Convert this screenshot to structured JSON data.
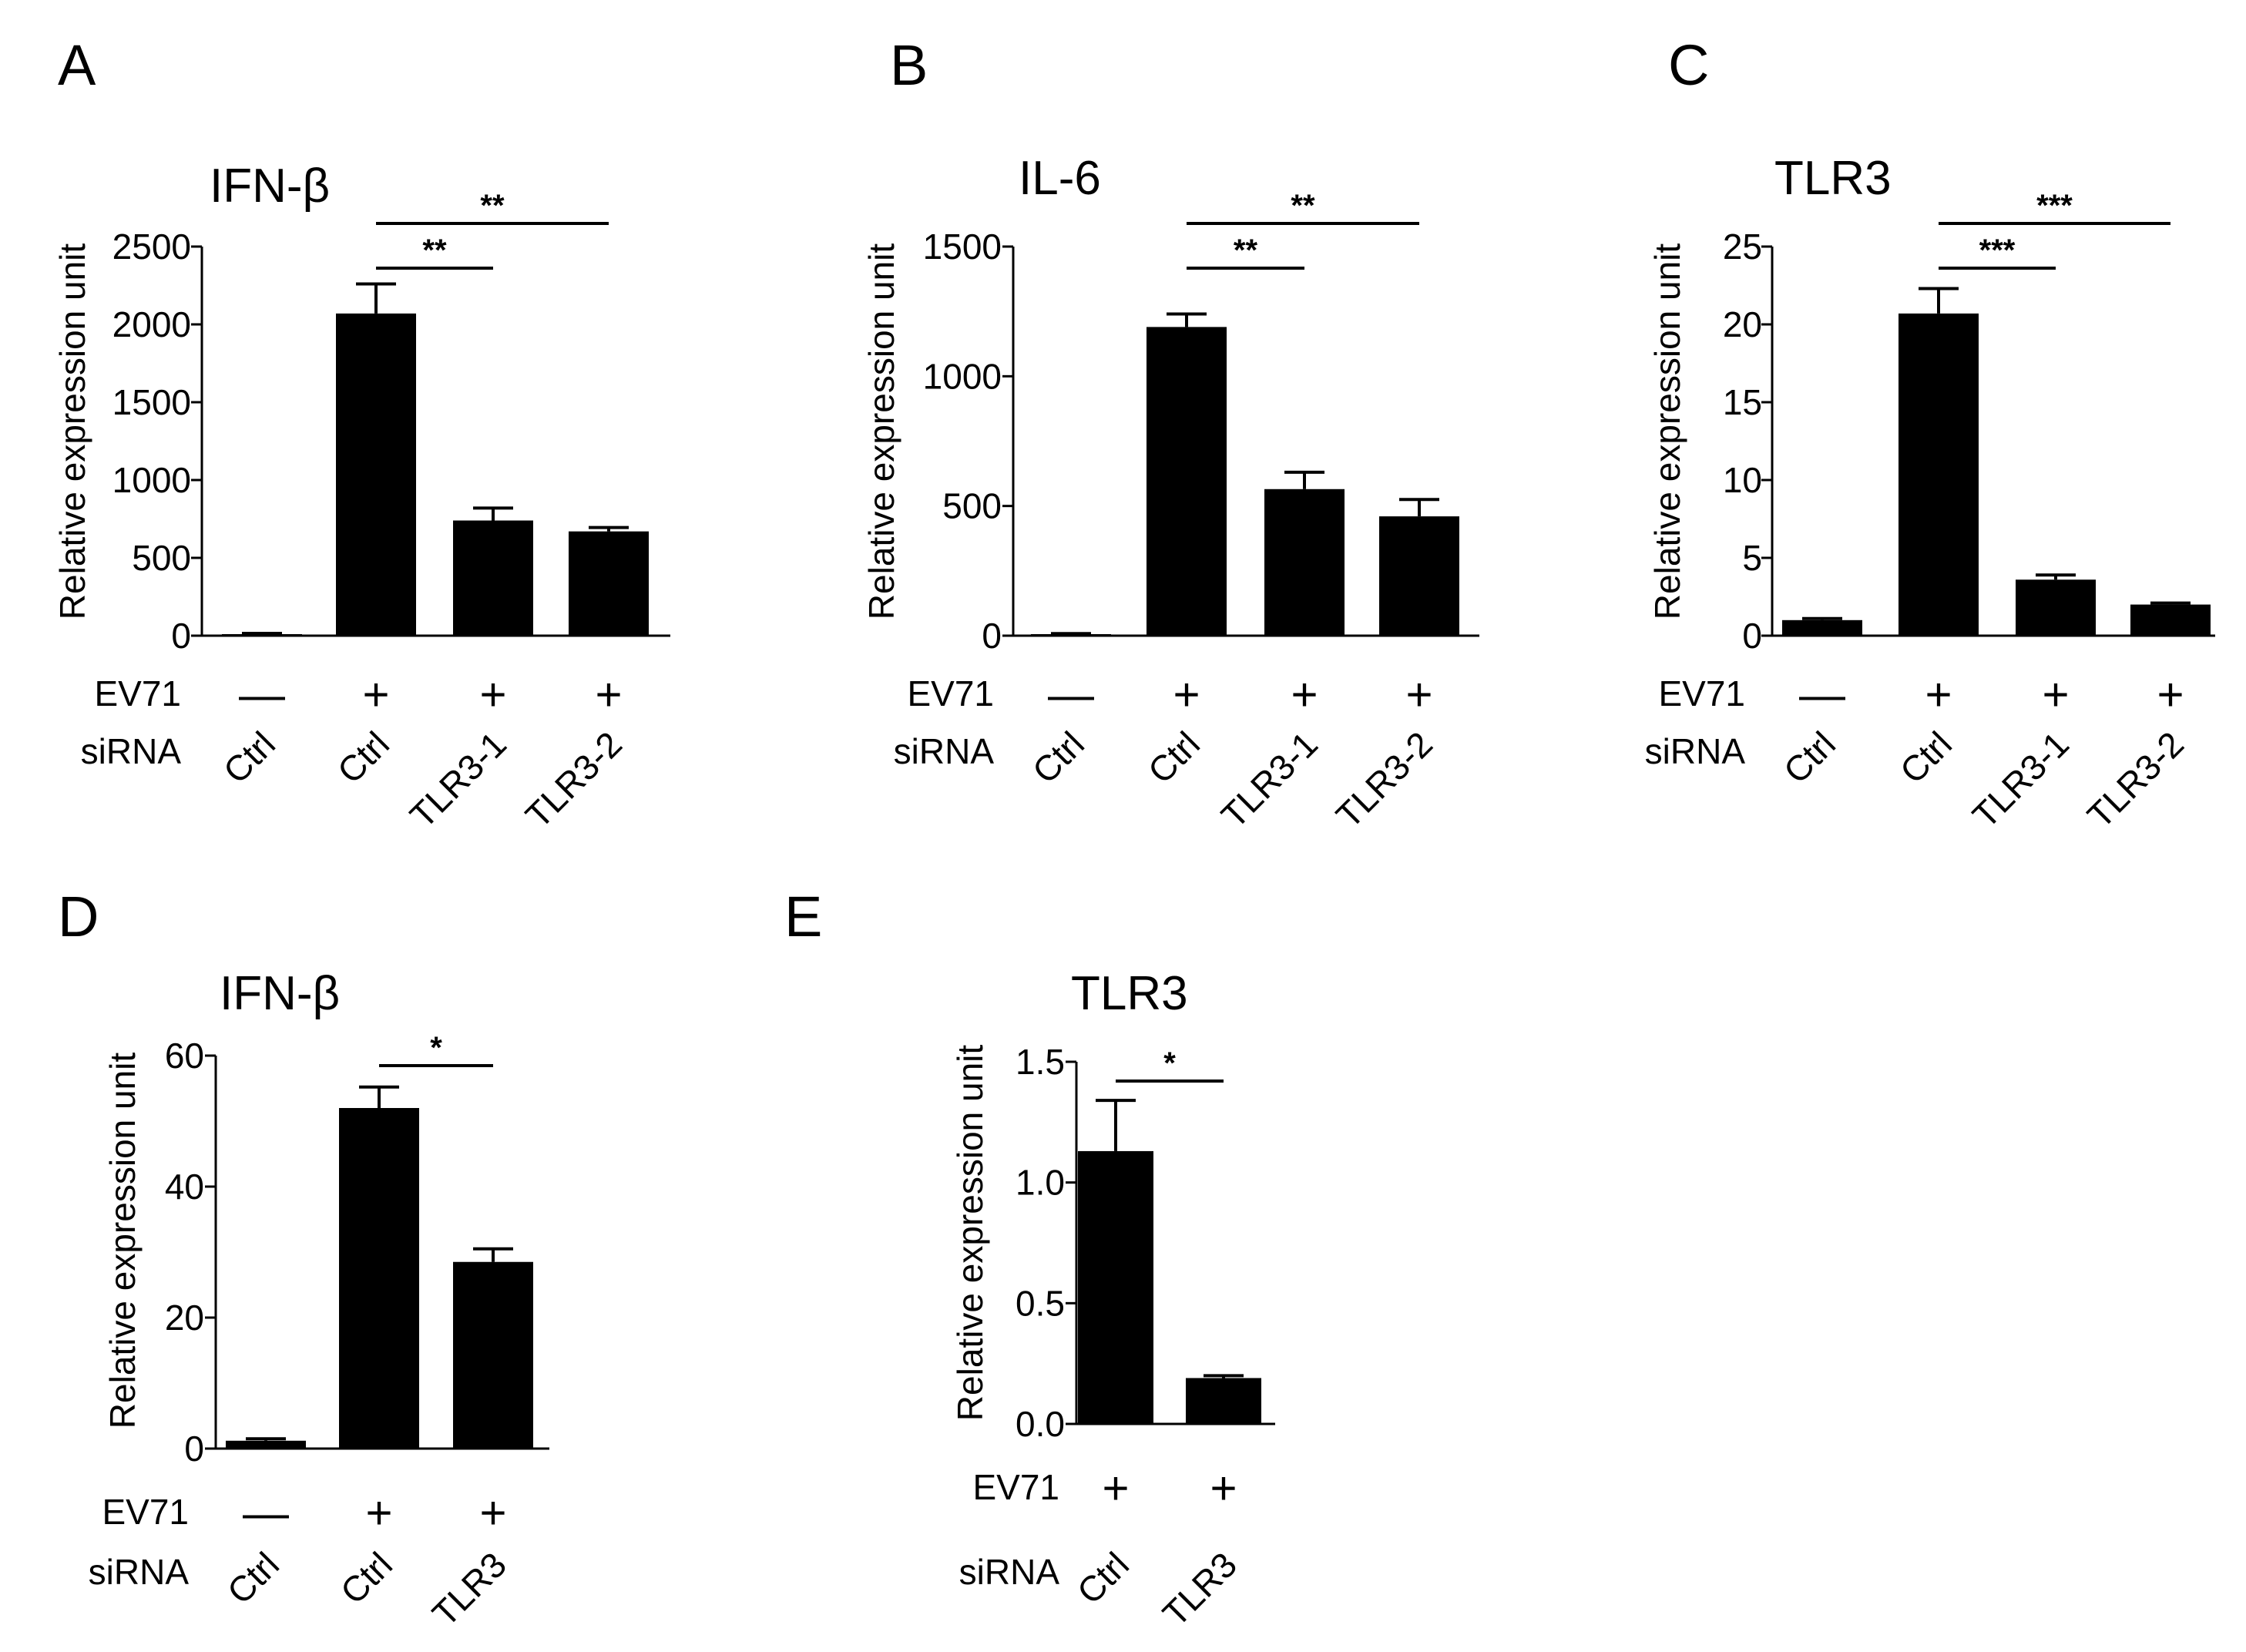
{
  "figure": {
    "panels": [
      "A",
      "B",
      "C",
      "D",
      "E"
    ],
    "row_labels": {
      "virus": "EV71",
      "sirna": "siRNA"
    }
  },
  "chart_data": [
    {
      "type": "bar",
      "panel": "A",
      "title": "IFN-β",
      "ylabel": "Relative expression unit",
      "xlabel": "",
      "ylim": [
        0,
        2500
      ],
      "yticks": [
        0,
        500,
        1000,
        1500,
        2000,
        2500
      ],
      "categories": [
        "Ctrl",
        "Ctrl",
        "TLR3-1",
        "TLR3-2"
      ],
      "ev71": [
        "—",
        "+",
        "+",
        "+"
      ],
      "values": [
        10,
        2070,
        740,
        670
      ],
      "errors": [
        5,
        190,
        80,
        25
      ],
      "significance": [
        {
          "from": 1,
          "to": 2,
          "label": "**"
        },
        {
          "from": 1,
          "to": 3,
          "label": "**"
        }
      ]
    },
    {
      "type": "bar",
      "panel": "B",
      "title": "IL-6",
      "ylabel": "Relative expression unit",
      "xlabel": "",
      "ylim": [
        0,
        1500
      ],
      "yticks": [
        0,
        500,
        1000,
        1500
      ],
      "categories": [
        "Ctrl",
        "Ctrl",
        "TLR3-1",
        "TLR3-2"
      ],
      "ev71": [
        "—",
        "+",
        "+",
        "+"
      ],
      "values": [
        5,
        1190,
        565,
        460
      ],
      "errors": [
        3,
        50,
        65,
        65
      ],
      "significance": [
        {
          "from": 1,
          "to": 2,
          "label": "**"
        },
        {
          "from": 1,
          "to": 3,
          "label": "**"
        }
      ]
    },
    {
      "type": "bar",
      "panel": "C",
      "title": "TLR3",
      "ylabel": "Relative expression unit",
      "xlabel": "",
      "ylim": [
        0,
        25
      ],
      "yticks": [
        0,
        5,
        10,
        15,
        20,
        25
      ],
      "categories": [
        "Ctrl",
        "Ctrl",
        "TLR3-1",
        "TLR3-2"
      ],
      "ev71": [
        "—",
        "+",
        "+",
        "+"
      ],
      "values": [
        1.0,
        20.7,
        3.6,
        2.0
      ],
      "errors": [
        0.1,
        1.6,
        0.3,
        0.1
      ],
      "significance": [
        {
          "from": 1,
          "to": 2,
          "label": "***"
        },
        {
          "from": 1,
          "to": 3,
          "label": "***"
        }
      ]
    },
    {
      "type": "bar",
      "panel": "D",
      "title": "IFN-β",
      "ylabel": "Relative expression unit",
      "xlabel": "",
      "ylim": [
        0,
        60
      ],
      "yticks": [
        0,
        20,
        40,
        60
      ],
      "categories": [
        "Ctrl",
        "Ctrl",
        "TLR3"
      ],
      "ev71": [
        "—",
        "+",
        "+"
      ],
      "values": [
        1.2,
        52,
        28.5
      ],
      "errors": [
        0.3,
        3.2,
        2.0
      ],
      "significance": [
        {
          "from": 1,
          "to": 2,
          "label": "*"
        }
      ]
    },
    {
      "type": "bar",
      "panel": "E",
      "title": "TLR3",
      "ylabel": "Relative expression unit",
      "xlabel": "",
      "ylim": [
        0,
        1.5
      ],
      "yticks": [
        "0.0",
        "0.5",
        "1.0",
        "1.5"
      ],
      "categories": [
        "Ctrl",
        "TLR3"
      ],
      "ev71": [
        "+",
        "+"
      ],
      "values": [
        1.13,
        0.19
      ],
      "errors": [
        0.21,
        0.01
      ],
      "significance": [
        {
          "from": 0,
          "to": 1,
          "label": "*"
        }
      ]
    }
  ]
}
